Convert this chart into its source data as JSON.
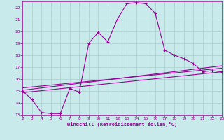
{
  "xlabel": "Windchill (Refroidissement éolien,°C)",
  "background_color": "#c8eaea",
  "grid_color": "#aacccc",
  "line_color": "#990099",
  "xlim": [
    2,
    23
  ],
  "ylim": [
    13,
    22.5
  ],
  "xticks": [
    2,
    3,
    4,
    5,
    6,
    7,
    8,
    9,
    10,
    11,
    12,
    13,
    14,
    15,
    16,
    17,
    18,
    19,
    20,
    21,
    22,
    23
  ],
  "yticks": [
    13,
    14,
    15,
    16,
    17,
    18,
    19,
    20,
    21,
    22
  ],
  "main_x": [
    2,
    3,
    4,
    5,
    6,
    7,
    8,
    9,
    10,
    11,
    12,
    13,
    14,
    15,
    16,
    17,
    18,
    19,
    20,
    21,
    22,
    23
  ],
  "main_y": [
    15.0,
    14.3,
    13.2,
    13.1,
    13.1,
    15.2,
    14.9,
    19.0,
    19.9,
    19.1,
    21.0,
    22.3,
    22.4,
    22.3,
    21.5,
    18.4,
    18.0,
    17.7,
    17.3,
    16.6,
    16.7,
    16.6
  ],
  "line1_x": [
    2,
    23
  ],
  "line1_y": [
    15.05,
    17.1
  ],
  "line2_x": [
    2,
    23
  ],
  "line2_y": [
    15.25,
    16.9
  ],
  "line3_x": [
    2,
    23
  ],
  "line3_y": [
    14.85,
    16.6
  ]
}
